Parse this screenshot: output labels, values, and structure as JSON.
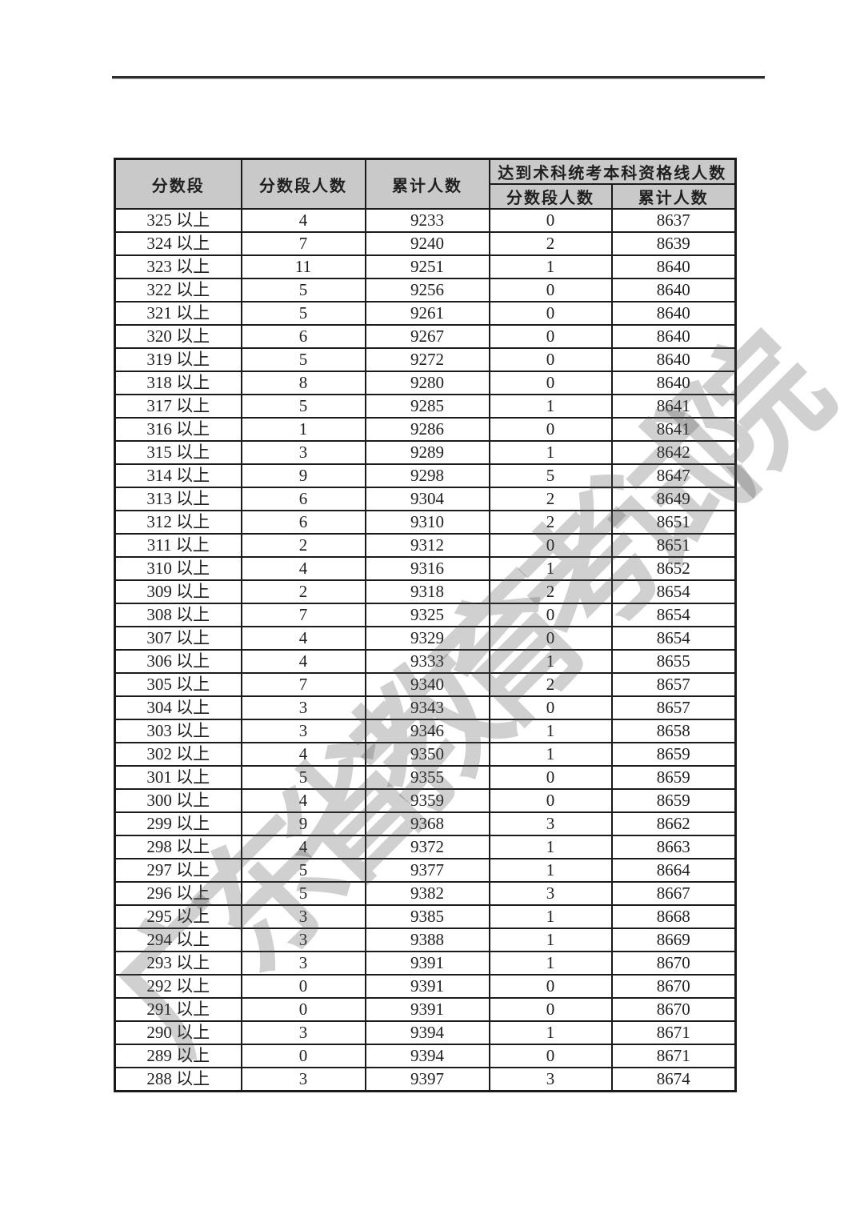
{
  "page": {
    "background_color": "#ffffff",
    "top_rule_color": "#2d2d2d"
  },
  "watermark": {
    "text": "广东省教育考试院",
    "color": "rgba(80,80,80,0.27)"
  },
  "table": {
    "header_bg_color": "#c9c9c9",
    "border_color": "#1a1a1a",
    "header": {
      "score_range": "分数段",
      "range_count": "分数段人数",
      "cumulative": "累计人数",
      "qualified_group": "达到术科统考本科资格线人数",
      "qualified_range_count": "分数段人数",
      "qualified_cumulative": "累计人数"
    },
    "cell_names": [
      "cell-score-range",
      "cell-range-count",
      "cell-cumulative",
      "cell-qualified-range-count",
      "cell-qualified-cumulative"
    ],
    "rows": [
      [
        "325 以上",
        "4",
        "9233",
        "0",
        "8637"
      ],
      [
        "324 以上",
        "7",
        "9240",
        "2",
        "8639"
      ],
      [
        "323 以上",
        "11",
        "9251",
        "1",
        "8640"
      ],
      [
        "322 以上",
        "5",
        "9256",
        "0",
        "8640"
      ],
      [
        "321 以上",
        "5",
        "9261",
        "0",
        "8640"
      ],
      [
        "320 以上",
        "6",
        "9267",
        "0",
        "8640"
      ],
      [
        "319 以上",
        "5",
        "9272",
        "0",
        "8640"
      ],
      [
        "318 以上",
        "8",
        "9280",
        "0",
        "8640"
      ],
      [
        "317 以上",
        "5",
        "9285",
        "1",
        "8641"
      ],
      [
        "316 以上",
        "1",
        "9286",
        "0",
        "8641"
      ],
      [
        "315 以上",
        "3",
        "9289",
        "1",
        "8642"
      ],
      [
        "314 以上",
        "9",
        "9298",
        "5",
        "8647"
      ],
      [
        "313 以上",
        "6",
        "9304",
        "2",
        "8649"
      ],
      [
        "312 以上",
        "6",
        "9310",
        "2",
        "8651"
      ],
      [
        "311 以上",
        "2",
        "9312",
        "0",
        "8651"
      ],
      [
        "310 以上",
        "4",
        "9316",
        "1",
        "8652"
      ],
      [
        "309 以上",
        "2",
        "9318",
        "2",
        "8654"
      ],
      [
        "308 以上",
        "7",
        "9325",
        "0",
        "8654"
      ],
      [
        "307 以上",
        "4",
        "9329",
        "0",
        "8654"
      ],
      [
        "306 以上",
        "4",
        "9333",
        "1",
        "8655"
      ],
      [
        "305 以上",
        "7",
        "9340",
        "2",
        "8657"
      ],
      [
        "304 以上",
        "3",
        "9343",
        "0",
        "8657"
      ],
      [
        "303 以上",
        "3",
        "9346",
        "1",
        "8658"
      ],
      [
        "302 以上",
        "4",
        "9350",
        "1",
        "8659"
      ],
      [
        "301 以上",
        "5",
        "9355",
        "0",
        "8659"
      ],
      [
        "300 以上",
        "4",
        "9359",
        "0",
        "8659"
      ],
      [
        "299 以上",
        "9",
        "9368",
        "3",
        "8662"
      ],
      [
        "298 以上",
        "4",
        "9372",
        "1",
        "8663"
      ],
      [
        "297 以上",
        "5",
        "9377",
        "1",
        "8664"
      ],
      [
        "296 以上",
        "5",
        "9382",
        "3",
        "8667"
      ],
      [
        "295 以上",
        "3",
        "9385",
        "1",
        "8668"
      ],
      [
        "294 以上",
        "3",
        "9388",
        "1",
        "8669"
      ],
      [
        "293 以上",
        "3",
        "9391",
        "1",
        "8670"
      ],
      [
        "292 以上",
        "0",
        "9391",
        "0",
        "8670"
      ],
      [
        "291 以上",
        "0",
        "9391",
        "0",
        "8670"
      ],
      [
        "290 以上",
        "3",
        "9394",
        "1",
        "8671"
      ],
      [
        "289 以上",
        "0",
        "9394",
        "0",
        "8671"
      ],
      [
        "288 以上",
        "3",
        "9397",
        "3",
        "8674"
      ]
    ]
  }
}
